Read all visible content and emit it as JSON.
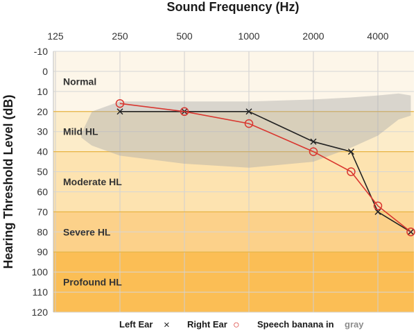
{
  "chart_data": {
    "type": "line",
    "title": "Sound Frequency (Hz)",
    "ylabel": "Hearing Threshold Level (dB)",
    "x_ticks": [
      125,
      250,
      500,
      1000,
      2000,
      4000
    ],
    "y_ticks": [
      -10,
      0,
      10,
      20,
      30,
      40,
      50,
      60,
      70,
      80,
      90,
      100,
      110,
      120
    ],
    "xlim": [
      125,
      5700
    ],
    "ylim": [
      -10,
      120
    ],
    "y_inverted": true,
    "x_scale": "log",
    "grid": true,
    "bands": [
      {
        "label": "Normal",
        "from": -10,
        "to": 20,
        "color": "#fdf6e9"
      },
      {
        "label": "Mild HL",
        "from": 20,
        "to": 40,
        "color": "#fcecc9"
      },
      {
        "label": "Moderate HL",
        "from": 40,
        "to": 70,
        "color": "#fde3b0"
      },
      {
        "label": "Severe HL",
        "from": 70,
        "to": 90,
        "color": "#fcd18a"
      },
      {
        "label": "Profound HL",
        "from": 90,
        "to": 120,
        "color": "#fbbe55"
      }
    ],
    "series": [
      {
        "name": "Left Ear",
        "marker": "×",
        "color": "#222222",
        "x": [
          250,
          500,
          1000,
          2000,
          3000,
          4000,
          5700
        ],
        "y": [
          20,
          20,
          20,
          35,
          40,
          70,
          80
        ]
      },
      {
        "name": "Right Ear",
        "marker": "○",
        "color": "#d9362f",
        "x": [
          250,
          500,
          1000,
          2000,
          3000,
          4000,
          5700
        ],
        "y": [
          16,
          20,
          26,
          40,
          50,
          67,
          80
        ]
      }
    ],
    "speech_banana": {
      "color": "#a6a6a6",
      "upper": [
        [
          165,
          31
        ],
        [
          185,
          20
        ],
        [
          250,
          15
        ],
        [
          500,
          15
        ],
        [
          1000,
          15
        ],
        [
          2000,
          14
        ],
        [
          3000,
          13
        ],
        [
          4000,
          12
        ],
        [
          5000,
          11
        ],
        [
          5700,
          12
        ]
      ],
      "lower": [
        [
          5700,
          22
        ],
        [
          5000,
          24
        ],
        [
          4000,
          32
        ],
        [
          3000,
          38
        ],
        [
          2000,
          45
        ],
        [
          1000,
          48
        ],
        [
          500,
          46
        ],
        [
          250,
          42
        ],
        [
          185,
          37
        ],
        [
          165,
          33
        ]
      ]
    },
    "legend": {
      "left_label": "Left Ear",
      "left_marker": "×",
      "right_label": "Right Ear",
      "right_marker": "○",
      "banana_label": "Speech banana in",
      "banana_word": "gray"
    }
  }
}
